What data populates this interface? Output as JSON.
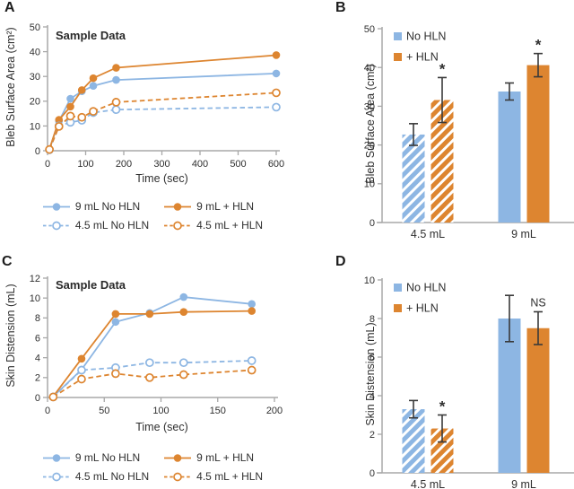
{
  "colors": {
    "blue": "#8DB6E3",
    "orange": "#DD8530",
    "axis": "#A8A8A8",
    "text": "#2F2F2F",
    "error_bar": "#3A3A3A",
    "background": "#FFFFFF"
  },
  "chart_data": [
    {
      "panel": "A",
      "type": "line",
      "title": "Sample Data",
      "xlabel": "Time (sec)",
      "ylabel": "Bleb Surface Area (cm²)",
      "xlim": [
        0,
        600
      ],
      "xticks": [
        0,
        100,
        200,
        300,
        400,
        500,
        600
      ],
      "ylim": [
        0,
        50
      ],
      "yticks": [
        0,
        10,
        20,
        30,
        40,
        50
      ],
      "grid": false,
      "legend_position": "below",
      "x": [
        5,
        30,
        60,
        90,
        120,
        180,
        600
      ],
      "series": [
        {
          "name": "9 mL No HLN",
          "color": "blue",
          "style": "solid",
          "marker": "filled",
          "values": [
            0.5,
            12.0,
            21.0,
            24.0,
            26.2,
            28.6,
            31.2
          ]
        },
        {
          "name": "9 mL + HLN",
          "color": "orange",
          "style": "solid",
          "marker": "filled",
          "values": [
            0.6,
            12.5,
            17.8,
            24.5,
            29.3,
            33.5,
            38.6
          ]
        },
        {
          "name": "4.5 mL No HLN",
          "color": "blue",
          "style": "dashed",
          "marker": "open",
          "values": [
            0.4,
            10.0,
            11.5,
            12.3,
            15.4,
            16.6,
            17.6
          ]
        },
        {
          "name": "4.5 mL + HLN",
          "color": "orange",
          "style": "dashed",
          "marker": "open",
          "values": [
            0.5,
            9.8,
            14.0,
            13.5,
            15.9,
            19.6,
            23.4
          ]
        }
      ]
    },
    {
      "panel": "B",
      "type": "bar",
      "ylabel": "Bleb Surface Area (cm²)",
      "ylim": [
        0,
        50
      ],
      "yticks": [
        0,
        10,
        20,
        30,
        40,
        50
      ],
      "grid": false,
      "legend_position": "inside-top-left",
      "categories": [
        "4.5 mL",
        "9 mL"
      ],
      "series": [
        {
          "name": "No HLN",
          "color": "blue",
          "values": [
            22.7,
            33.8
          ],
          "errors": [
            2.8,
            2.2
          ],
          "hatched": [
            true,
            false
          ]
        },
        {
          "name": "+ HLN",
          "color": "orange",
          "values": [
            31.6,
            40.6
          ],
          "errors": [
            5.8,
            3.0
          ],
          "hatched": [
            true,
            false
          ]
        }
      ],
      "annotations": [
        {
          "category": 0,
          "series": 1,
          "text": "*"
        },
        {
          "category": 1,
          "series": 1,
          "text": "*"
        }
      ]
    },
    {
      "panel": "C",
      "type": "line",
      "title": "Sample Data",
      "xlabel": "Time (sec)",
      "ylabel": "Skin Distension (mL)",
      "xlim": [
        0,
        200
      ],
      "xticks": [
        0,
        50,
        100,
        150,
        200
      ],
      "ylim": [
        0,
        12
      ],
      "yticks": [
        0,
        2,
        4,
        6,
        8,
        10,
        12
      ],
      "grid": false,
      "legend_position": "below",
      "x": [
        5,
        30,
        60,
        90,
        120,
        180
      ],
      "series": [
        {
          "name": "9 mL No HLN",
          "color": "blue",
          "style": "solid",
          "marker": "filled",
          "values": [
            0.1,
            2.8,
            7.6,
            8.5,
            10.1,
            9.4
          ]
        },
        {
          "name": "9 mL + HLN",
          "color": "orange",
          "style": "solid",
          "marker": "filled",
          "values": [
            0.1,
            3.9,
            8.4,
            8.4,
            8.6,
            8.7
          ]
        },
        {
          "name": "4.5 mL No HLN",
          "color": "blue",
          "style": "dashed",
          "marker": "open",
          "values": [
            0.05,
            2.75,
            3.0,
            3.5,
            3.5,
            3.7
          ]
        },
        {
          "name": "4.5 mL + HLN",
          "color": "orange",
          "style": "dashed",
          "marker": "open",
          "values": [
            0.05,
            1.85,
            2.4,
            2.0,
            2.3,
            2.75
          ]
        }
      ]
    },
    {
      "panel": "D",
      "type": "bar",
      "ylabel": "Skin Distension (mL)",
      "ylim": [
        0,
        10
      ],
      "yticks": [
        0,
        2,
        4,
        6,
        8,
        10
      ],
      "grid": false,
      "legend_position": "inside-top-left",
      "categories": [
        "4.5 mL",
        "9 mL"
      ],
      "series": [
        {
          "name": "No HLN",
          "color": "blue",
          "values": [
            3.3,
            8.0
          ],
          "errors": [
            0.45,
            1.2
          ],
          "hatched": [
            true,
            false
          ]
        },
        {
          "name": "+ HLN",
          "color": "orange",
          "values": [
            2.3,
            7.5
          ],
          "errors": [
            0.7,
            0.85
          ],
          "hatched": [
            true,
            false
          ]
        }
      ],
      "annotations": [
        {
          "category": 0,
          "series": 1,
          "text": "*"
        },
        {
          "category": 1,
          "series": 1,
          "text": "NS"
        }
      ]
    }
  ]
}
